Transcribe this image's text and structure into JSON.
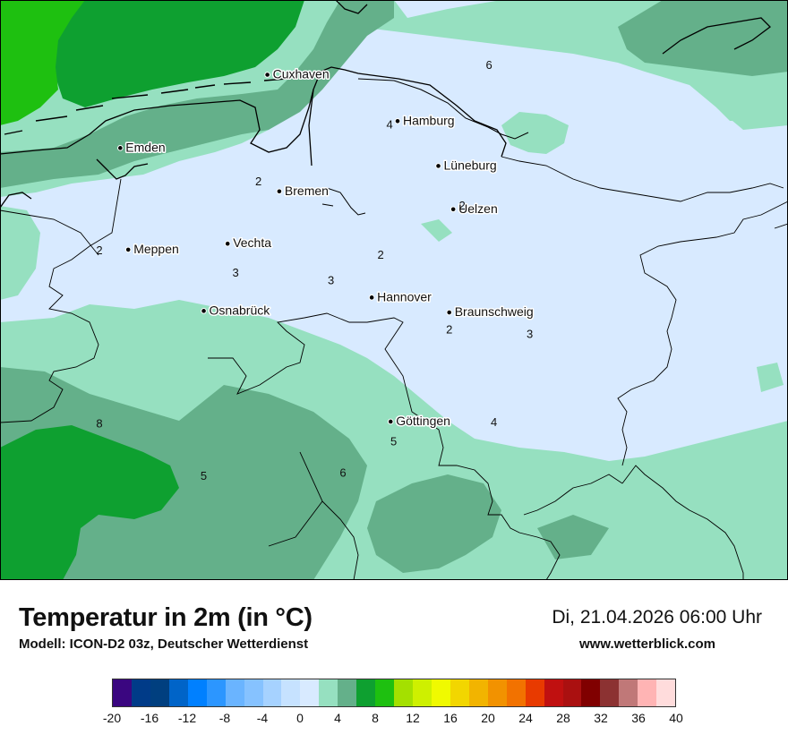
{
  "title": "Temperatur in 2m (in °C)",
  "model": "Modell: ICON-D2 03z, Deutscher Wetterdienst",
  "datetime": "Di, 21.04.2026 06:00 Uhr",
  "website": "www.wetterblick.com",
  "cities": [
    {
      "name": "Cuxhaven",
      "lon": 8.69,
      "lat": 53.86
    },
    {
      "name": "Hamburg",
      "lon": 10.0,
      "lat": 53.55
    },
    {
      "name": "Emden",
      "lon": 7.21,
      "lat": 53.37
    },
    {
      "name": "Lüneburg",
      "lon": 10.41,
      "lat": 53.25
    },
    {
      "name": "Bremen",
      "lon": 8.81,
      "lat": 53.08
    },
    {
      "name": "Uelzen",
      "lon": 10.56,
      "lat": 52.96
    },
    {
      "name": "Vechta",
      "lon": 8.29,
      "lat": 52.73
    },
    {
      "name": "Meppen",
      "lon": 7.29,
      "lat": 52.69
    },
    {
      "name": "Hannover",
      "lon": 9.74,
      "lat": 52.37
    },
    {
      "name": "Osnabrück",
      "lon": 8.05,
      "lat": 52.28
    },
    {
      "name": "Braunschweig",
      "lon": 10.52,
      "lat": 52.27
    },
    {
      "name": "Göttingen",
      "lon": 9.93,
      "lat": 51.54
    }
  ],
  "isotherm_labels": [
    {
      "text": "6",
      "lon": 10.92,
      "lat": 53.9
    },
    {
      "text": "4",
      "lon": 9.92,
      "lat": 53.5
    },
    {
      "text": "2",
      "lon": 8.6,
      "lat": 53.12
    },
    {
      "text": "2",
      "lon": 10.65,
      "lat": 52.96
    },
    {
      "text": "2",
      "lon": 7.0,
      "lat": 52.66
    },
    {
      "text": "2",
      "lon": 9.83,
      "lat": 52.63
    },
    {
      "text": "3",
      "lon": 8.37,
      "lat": 52.51
    },
    {
      "text": "3",
      "lon": 9.33,
      "lat": 52.46
    },
    {
      "text": "2",
      "lon": 10.52,
      "lat": 52.13
    },
    {
      "text": "3",
      "lon": 11.33,
      "lat": 52.1
    },
    {
      "text": "4",
      "lon": 10.97,
      "lat": 51.51
    },
    {
      "text": "5",
      "lon": 9.96,
      "lat": 51.38
    },
    {
      "text": "8",
      "lon": 7.0,
      "lat": 51.5
    },
    {
      "text": "6",
      "lon": 9.45,
      "lat": 51.17
    },
    {
      "text": "5",
      "lon": 8.05,
      "lat": 51.15
    }
  ],
  "legend": {
    "colors": [
      "#3a0680",
      "#003b88",
      "#003f7f",
      "#0064c8",
      "#0080ff",
      "#2c96ff",
      "#6ab4ff",
      "#86c2ff",
      "#a6d2ff",
      "#c6e2ff",
      "#d8eaff",
      "#96e0c0",
      "#64b08a",
      "#0ea030",
      "#1ec010",
      "#a4e000",
      "#cef000",
      "#f0fa00",
      "#f2d600",
      "#f2b400",
      "#f29200",
      "#f27200",
      "#e83a00",
      "#c01010",
      "#aa1010",
      "#800000",
      "#8c3232",
      "#c07878",
      "#ffb4b4",
      "#ffdcdc"
    ],
    "ticks": [
      "-20",
      "-16",
      "-12",
      "-8",
      "-4",
      "0",
      "4",
      "8",
      "12",
      "16",
      "20",
      "24",
      "28",
      "32",
      "36",
      "40"
    ]
  }
}
